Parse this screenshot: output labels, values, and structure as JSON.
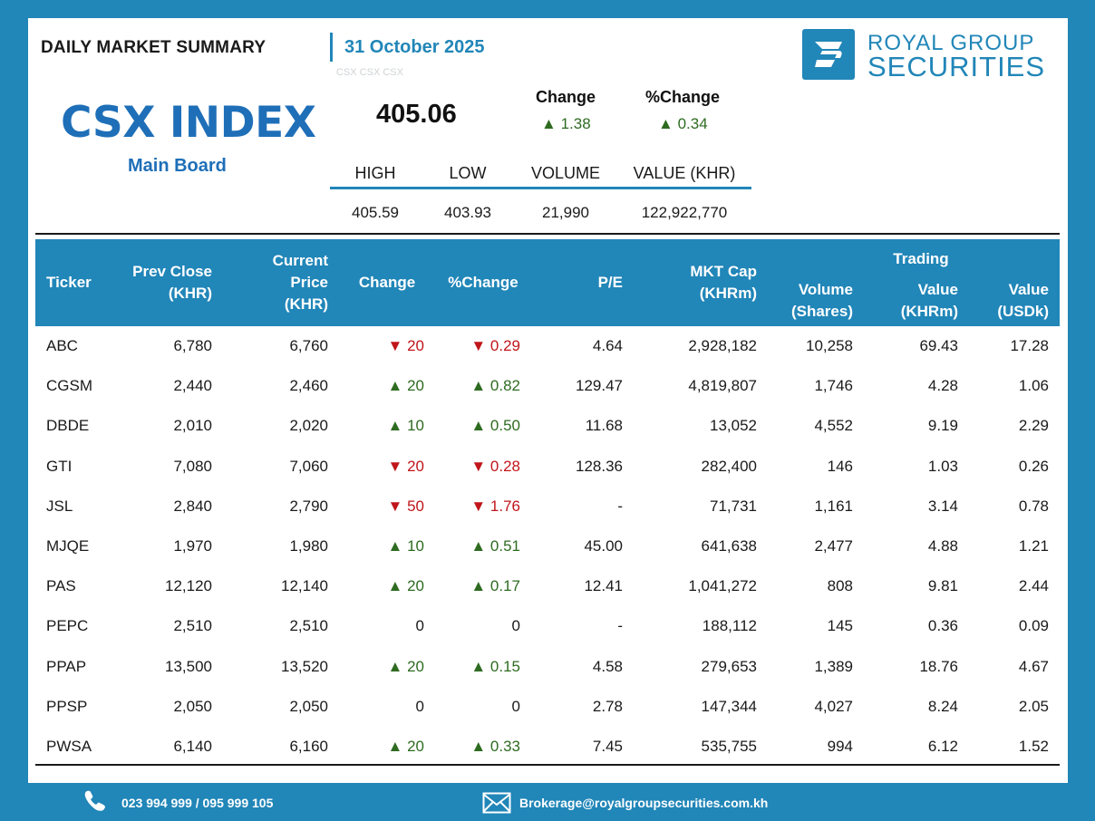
{
  "header": {
    "report_title": "DAILY MARKET SUMMARY",
    "date": "31 October 2025",
    "ghost_text": "CSX CSX CSX",
    "logo_line1": "ROYAL GROUP",
    "logo_line2": "SECURITIES"
  },
  "index": {
    "name": "CSX INDEX",
    "board": "Main Board",
    "value": "405.06",
    "change_label": "Change",
    "change_value": "1.38",
    "pct_change_label": "%Change",
    "pct_change_value": "0.34",
    "arrow_up": "▲",
    "stats_headers": [
      "HIGH",
      "LOW",
      "VOLUME",
      "VALUE (KHR)"
    ],
    "stats_values": [
      "405.59",
      "403.93",
      "21,990",
      "122,922,770"
    ]
  },
  "table": {
    "headers": {
      "ticker": "Ticker",
      "prev_close_1": "Prev Close",
      "prev_close_2": "(KHR)",
      "current_1": "Current Price",
      "current_2": "(KHR)",
      "change": "Change",
      "pct_change": "%Change",
      "pe": "P/E",
      "mktcap_1": "MKT Cap",
      "mktcap_2": "(KHRm)",
      "volume_1": "Volume",
      "volume_2": "(Shares)",
      "trading": "Trading",
      "tvalue_1": "Value",
      "tvalue_2": "(KHRm)",
      "usd_1": "Value",
      "usd_2": "(USDk)"
    },
    "rows": [
      {
        "ticker": "ABC",
        "prev": "6,780",
        "cur": "6,760",
        "dir": "down",
        "chg": "20",
        "pct": "0.29",
        "pe": "4.64",
        "mkt": "2,928,182",
        "vol": "10,258",
        "val": "69.43",
        "usd": "17.28"
      },
      {
        "ticker": "CGSM",
        "prev": "2,440",
        "cur": "2,460",
        "dir": "up",
        "chg": "20",
        "pct": "0.82",
        "pe": "129.47",
        "mkt": "4,819,807",
        "vol": "1,746",
        "val": "4.28",
        "usd": "1.06"
      },
      {
        "ticker": "DBDE",
        "prev": "2,010",
        "cur": "2,020",
        "dir": "up",
        "chg": "10",
        "pct": "0.50",
        "pe": "11.68",
        "mkt": "13,052",
        "vol": "4,552",
        "val": "9.19",
        "usd": "2.29"
      },
      {
        "ticker": "GTI",
        "prev": "7,080",
        "cur": "7,060",
        "dir": "down",
        "chg": "20",
        "pct": "0.28",
        "pe": "128.36",
        "mkt": "282,400",
        "vol": "146",
        "val": "1.03",
        "usd": "0.26"
      },
      {
        "ticker": "JSL",
        "prev": "2,840",
        "cur": "2,790",
        "dir": "down",
        "chg": "50",
        "pct": "1.76",
        "pe": "-",
        "mkt": "71,731",
        "vol": "1,161",
        "val": "3.14",
        "usd": "0.78"
      },
      {
        "ticker": "MJQE",
        "prev": "1,970",
        "cur": "1,980",
        "dir": "up",
        "chg": "10",
        "pct": "0.51",
        "pe": "45.00",
        "mkt": "641,638",
        "vol": "2,477",
        "val": "4.88",
        "usd": "1.21"
      },
      {
        "ticker": "PAS",
        "prev": "12,120",
        "cur": "12,140",
        "dir": "up",
        "chg": "20",
        "pct": "0.17",
        "pe": "12.41",
        "mkt": "1,041,272",
        "vol": "808",
        "val": "9.81",
        "usd": "2.44"
      },
      {
        "ticker": "PEPC",
        "prev": "2,510",
        "cur": "2,510",
        "dir": "flat",
        "chg": "0",
        "pct": "0",
        "pe": "-",
        "mkt": "188,112",
        "vol": "145",
        "val": "0.36",
        "usd": "0.09"
      },
      {
        "ticker": "PPAP",
        "prev": "13,500",
        "cur": "13,520",
        "dir": "up",
        "chg": "20",
        "pct": "0.15",
        "pe": "4.58",
        "mkt": "279,653",
        "vol": "1,389",
        "val": "18.76",
        "usd": "4.67"
      },
      {
        "ticker": "PPSP",
        "prev": "2,050",
        "cur": "2,050",
        "dir": "flat",
        "chg": "0",
        "pct": "0",
        "pe": "2.78",
        "mkt": "147,344",
        "vol": "4,027",
        "val": "8.24",
        "usd": "2.05"
      },
      {
        "ticker": "PWSA",
        "prev": "6,140",
        "cur": "6,160",
        "dir": "up",
        "chg": "20",
        "pct": "0.33",
        "pe": "7.45",
        "mkt": "535,755",
        "vol": "994",
        "val": "6.12",
        "usd": "1.52"
      }
    ]
  },
  "footer": {
    "phone_icon": "phone-icon",
    "phone": "023 994 999 / 095 999 105",
    "mail_icon": "mail-icon",
    "email": "Brokerage@royalgroupsecurities.com.kh"
  },
  "colors": {
    "brand_blue": "#2186b8",
    "index_blue": "#1e6fb8",
    "up_green": "#2e6b21",
    "down_red": "#c0161b"
  }
}
